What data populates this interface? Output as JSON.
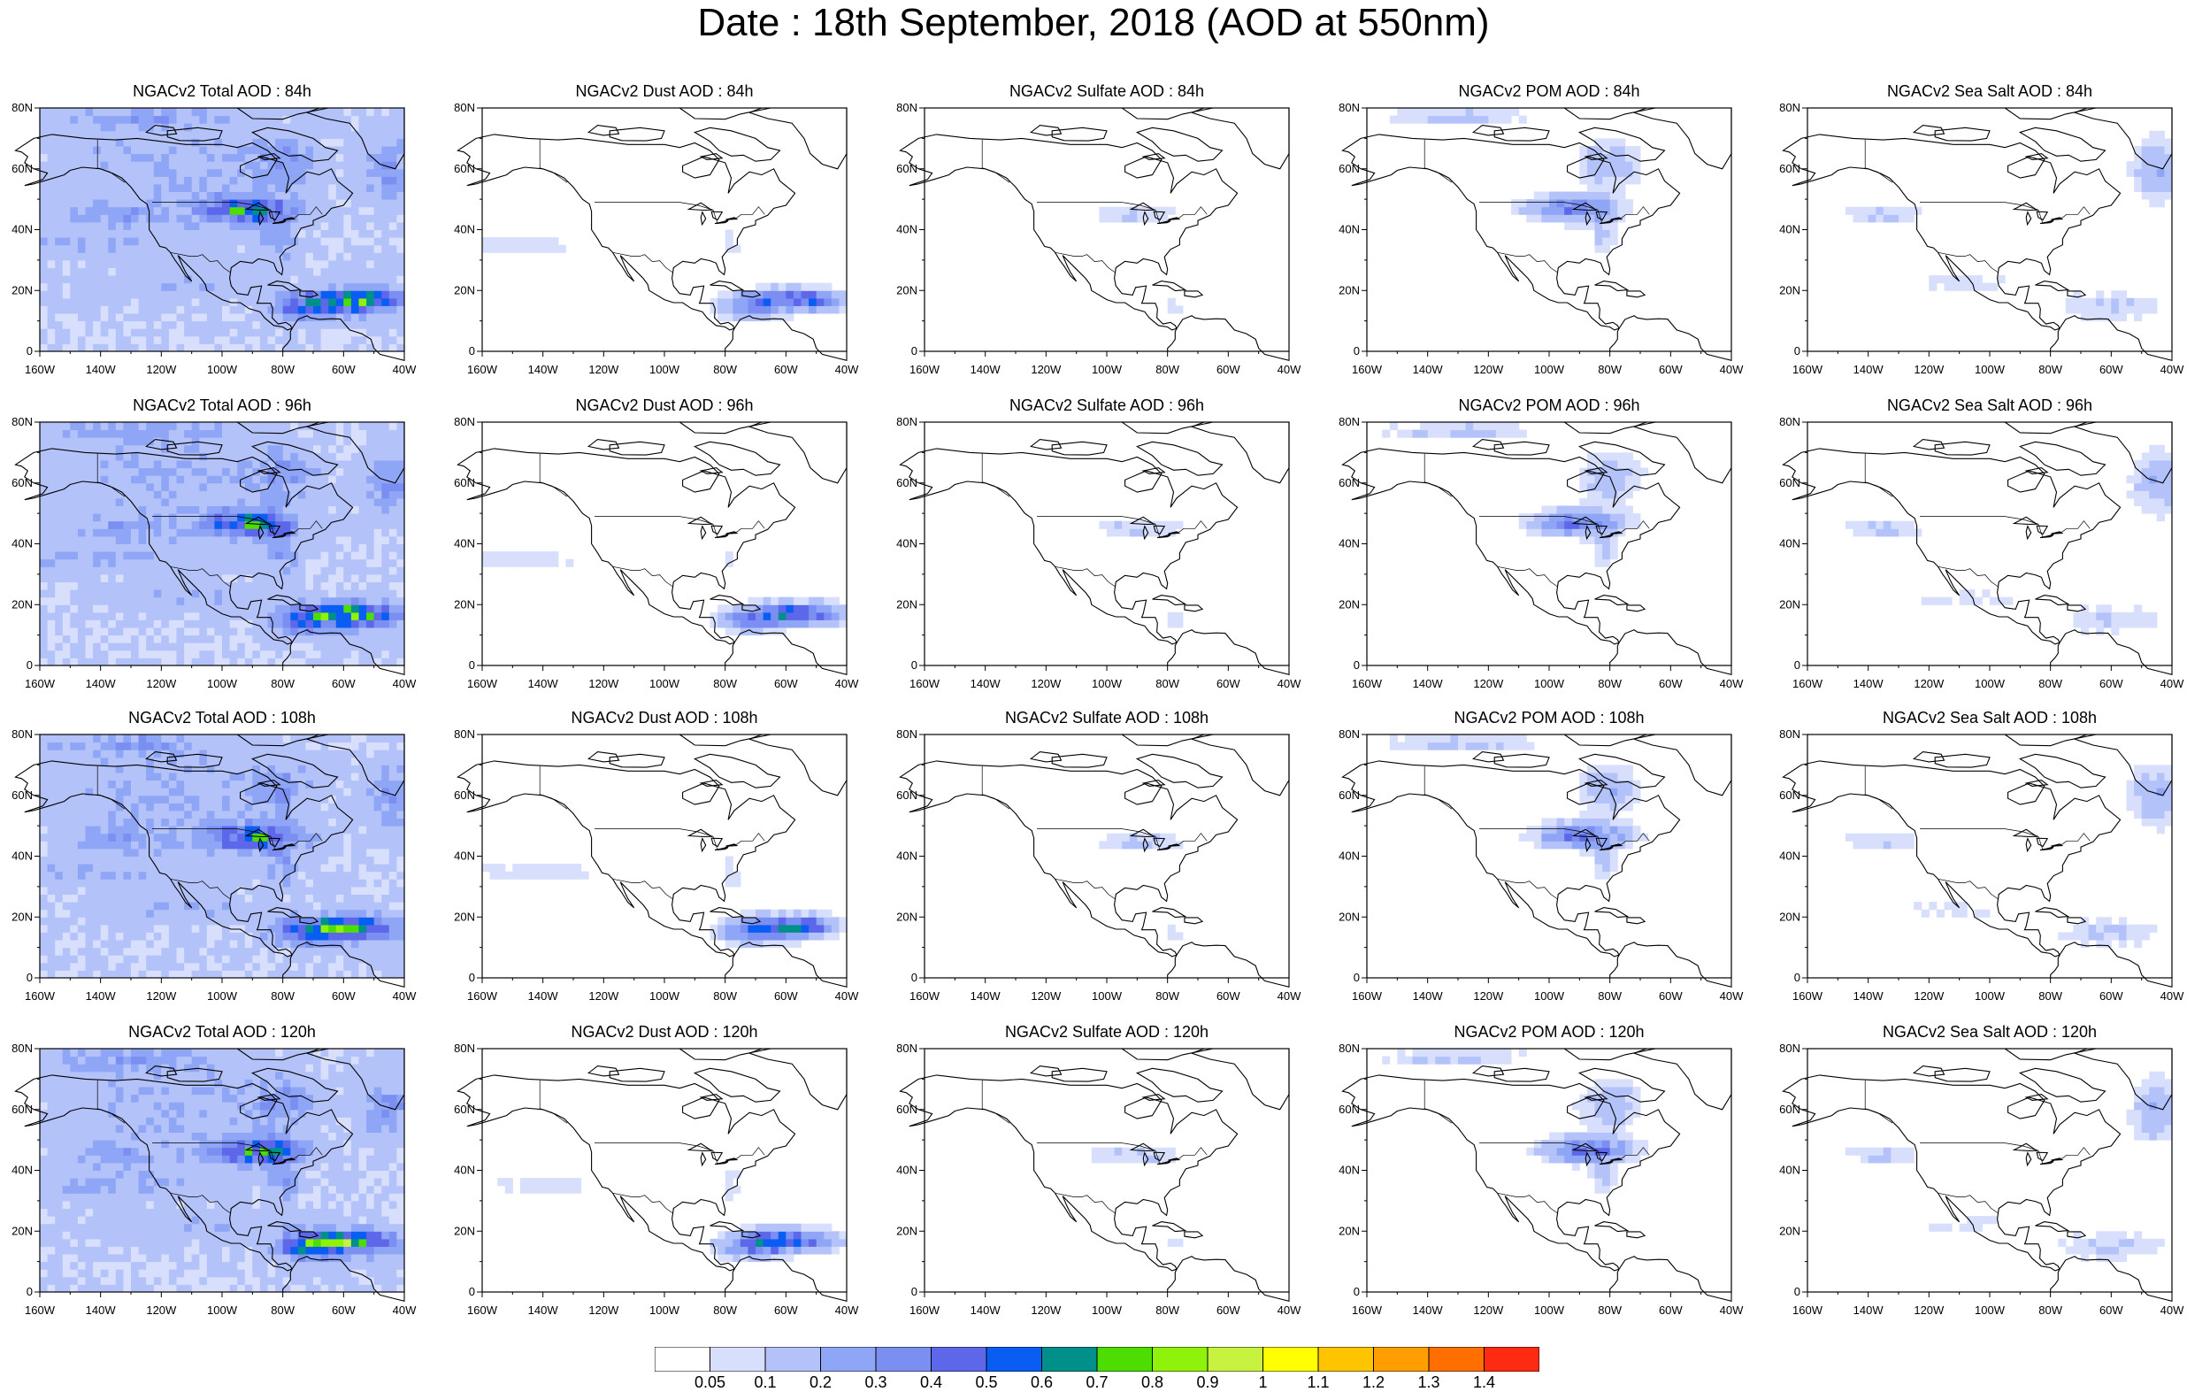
{
  "title": "Date : 18th September, 2018 (AOD at 550nm)",
  "colors": [
    "#ffffff",
    "#d7dffc",
    "#b3c2f9",
    "#8fa5f6",
    "#7b8ef2",
    "#5c67e9",
    "#0a5df3",
    "#00908c",
    "#4ddd00",
    "#8ef20a",
    "#c7f240",
    "#ffff00",
    "#ffc400",
    "#ff9e00",
    "#ff6f00",
    "#ff2a12"
  ],
  "colorbar_labels": [
    "0.05",
    "0.1",
    "0.2",
    "0.3",
    "0.4",
    "0.5",
    "0.6",
    "0.7",
    "0.8",
    "0.9",
    "1",
    "1.1",
    "1.2",
    "1.3",
    "1.4"
  ],
  "y_ticks": [
    "0",
    "20N",
    "40N",
    "60N",
    "80N"
  ],
  "x_ticks": [
    "160W",
    "140W",
    "120W",
    "100W",
    "80W",
    "60W",
    "40W"
  ],
  "x_ticks_alt": [
    "160W",
    "140W",
    "120W",
    "100W",
    "80W",
    "60W",
    "40W"
  ],
  "panels": [
    {
      "title": "NGACv2 Total AOD : 84h",
      "species": "total"
    },
    {
      "title": "NGACv2 Dust AOD : 84h",
      "species": "dust"
    },
    {
      "title": "NGACv2 Sulfate AOD : 84h",
      "species": "sulfate"
    },
    {
      "title": "NGACv2 POM AOD : 84h",
      "species": "pom"
    },
    {
      "title": "NGACv2 Sea Salt AOD : 84h",
      "species": "seasalt"
    },
    {
      "title": "NGACv2 Total AOD : 96h",
      "species": "total"
    },
    {
      "title": "NGACv2 Dust AOD : 96h",
      "species": "dust"
    },
    {
      "title": "NGACv2 Sulfate AOD : 96h",
      "species": "sulfate"
    },
    {
      "title": "NGACv2 POM AOD : 96h",
      "species": "pom"
    },
    {
      "title": "NGACv2 Sea Salt AOD : 96h",
      "species": "seasalt"
    },
    {
      "title": "NGACv2 Total AOD : 108h",
      "species": "total"
    },
    {
      "title": "NGACv2 Dust AOD : 108h",
      "species": "dust"
    },
    {
      "title": "NGACv2 Sulfate AOD : 108h",
      "species": "sulfate"
    },
    {
      "title": "NGACv2 POM AOD : 108h",
      "species": "pom"
    },
    {
      "title": "NGACv2 Sea Salt  AOD : 108h",
      "species": "seasalt"
    },
    {
      "title": "NGACv2 Total AOD : 120h",
      "species": "total"
    },
    {
      "title": "NGACv2 Dust AOD : 120h",
      "species": "dust"
    },
    {
      "title": "NGACv2 Sulfate AOD : 120h",
      "species": "sulfate"
    },
    {
      "title": "NGACv2 POM AOD : 120h",
      "species": "pom"
    },
    {
      "title": "NGACv2 Sea Salt  AOD : 120h",
      "species": "seasalt"
    }
  ]
}
